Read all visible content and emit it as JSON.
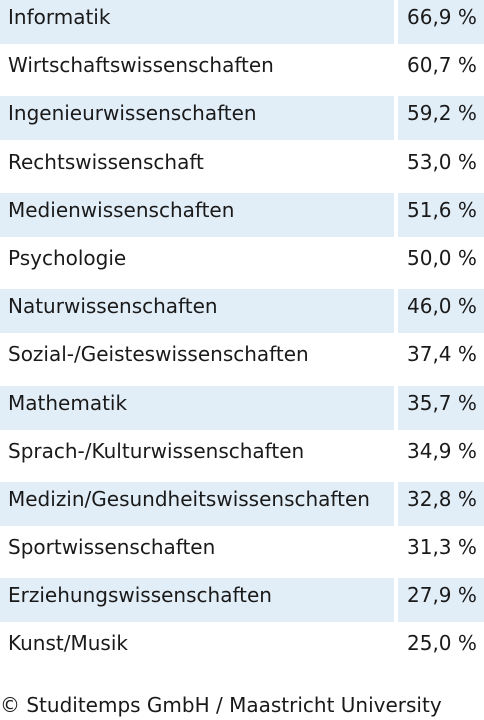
{
  "chart_data": {
    "type": "table",
    "categories": [
      "Informatik",
      "Wirtschaftswissenschaften",
      "Ingenieurwissenschaften",
      "Rechtswissenschaft",
      "Medienwissenschaften",
      "Psychologie",
      "Naturwissenschaften",
      "Sozial-/Geisteswissenschaften",
      "Mathematik",
      "Sprach-/Kulturwissenschaften",
      "Medizin/Gesundheitswissenschaften",
      "Sportwissenschaften",
      "Erziehungswissenschaften",
      "Kunst/Musik"
    ],
    "labels": [
      "66,9 %",
      "60,7 %",
      "59,2 %",
      "53,0 %",
      "51,6 %",
      "50,0 %",
      "46,0 %",
      "37,4 %",
      "35,7 %",
      "34,9 %",
      "32,8 %",
      "31,3 %",
      "27,9 %",
      "25,0 %"
    ],
    "values": [
      66.9,
      60.7,
      59.2,
      53.0,
      51.6,
      50.0,
      46.0,
      37.4,
      35.7,
      34.9,
      32.8,
      31.3,
      27.9,
      25.0
    ],
    "unit": "%"
  },
  "source": "© Studitemps GmbH / Maastricht University",
  "colors": {
    "row_alt": "#e1edf7",
    "row": "#ffffff",
    "text": "#1a1a1a"
  }
}
